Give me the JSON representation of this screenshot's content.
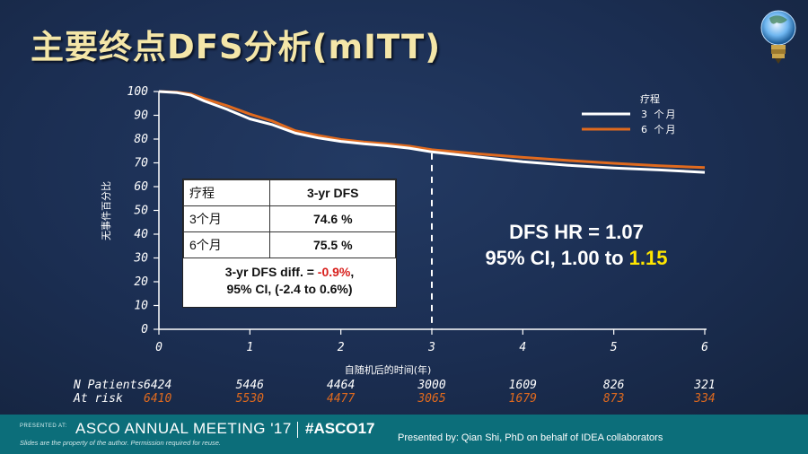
{
  "slide": {
    "title": "主要终点DFS分析(mITT)"
  },
  "chart_data": {
    "type": "line",
    "ylabel": "无事件百分比",
    "xlabel": "自随机后的时间(年)",
    "xlim": [
      0,
      6
    ],
    "ylim": [
      0,
      100
    ],
    "x_ticks": [
      "0",
      "1",
      "2",
      "3",
      "4",
      "5",
      "6"
    ],
    "y_ticks": [
      "100",
      "90",
      "80",
      "70",
      "60",
      "50",
      "40",
      "30",
      "20",
      "10",
      "0"
    ],
    "legend_title": "疗程",
    "reference_line_x": 3,
    "series": [
      {
        "name": "3 个月",
        "color": "#ffffff",
        "x": [
          0,
          0.2,
          0.35,
          0.5,
          0.75,
          1.0,
          1.25,
          1.5,
          1.75,
          2.0,
          2.25,
          2.5,
          2.75,
          3.0,
          3.5,
          4.0,
          4.5,
          5.0,
          5.5,
          6.0
        ],
        "y": [
          100,
          99.5,
          98.5,
          96,
          92.5,
          88.5,
          86,
          82.5,
          80.5,
          79,
          78,
          77.2,
          76.2,
          74.6,
          72.5,
          70.5,
          69,
          67.8,
          67,
          66
        ]
      },
      {
        "name": "6 个月",
        "color": "#e06a1e",
        "x": [
          0,
          0.2,
          0.35,
          0.5,
          0.75,
          1.0,
          1.25,
          1.5,
          1.75,
          2.0,
          2.25,
          2.5,
          2.75,
          3.0,
          3.5,
          4.0,
          4.5,
          5.0,
          5.5,
          6.0
        ],
        "y": [
          100,
          99.7,
          99,
          97,
          94,
          90.5,
          87.5,
          83.5,
          81.5,
          79.8,
          78.8,
          78,
          77,
          75.5,
          73.8,
          72.3,
          71,
          69.8,
          68.8,
          68
        ]
      }
    ]
  },
  "table": {
    "header": [
      "疗程",
      "3-yr DFS"
    ],
    "rows": [
      [
        "3个月",
        "74.6 %"
      ],
      [
        "6个月",
        "75.5 %"
      ]
    ],
    "note_line1_prefix": "3-yr DFS diff. = ",
    "note_line1_value": "-0.9%",
    "note_line1_suffix": ",",
    "note_line2": "95% CI, (-2.4 to 0.6%)"
  },
  "hr": {
    "line1": "DFS HR = 1.07",
    "line2_prefix": "95% CI, 1.00 to ",
    "line2_highlight": "1.15"
  },
  "risk_table": {
    "head_line1": "N Patients",
    "head_line2": "At risk",
    "row_3mo": [
      "6424",
      "5446",
      "4464",
      "3000",
      "1609",
      "826",
      "321"
    ],
    "row_6mo": [
      "6410",
      "5530",
      "4477",
      "3065",
      "1679",
      "873",
      "334"
    ]
  },
  "footer": {
    "presented_at": "PRESENTED AT:",
    "meeting": "ASCO ANNUAL MEETING '17",
    "hashtag": "#ASCO17",
    "disclaimer": "Slides are the property of the author. Permission required for reuse.",
    "presenter": "Presented by: Qian Shi, PhD on behalf of IDEA collaborators"
  },
  "colors": {
    "background": "#1b2e52",
    "title": "#f4e6a8",
    "series_3mo": "#ffffff",
    "series_6mo": "#e06a1e",
    "highlight": "#ffe600",
    "footer": "#0c6e7a"
  }
}
